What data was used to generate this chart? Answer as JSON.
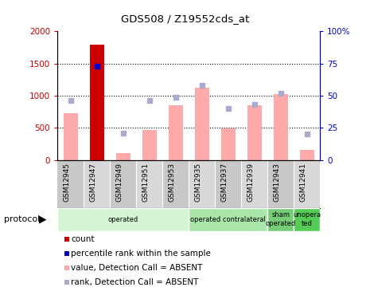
{
  "title": "GDS508 / Z19552cds_at",
  "samples": [
    "GSM12945",
    "GSM12947",
    "GSM12949",
    "GSM12951",
    "GSM12953",
    "GSM12935",
    "GSM12937",
    "GSM12939",
    "GSM12943",
    "GSM12941"
  ],
  "bar_values": [
    730,
    1800,
    110,
    470,
    850,
    1120,
    490,
    850,
    1030,
    155
  ],
  "rank_values": [
    46,
    73,
    21,
    46,
    49,
    58,
    40,
    43,
    52,
    20
  ],
  "count_sample_idx": 1,
  "percentile_sample_idx": 1,
  "ylim_left": [
    0,
    2000
  ],
  "ylim_right": [
    0,
    100
  ],
  "yticks_left": [
    0,
    500,
    1000,
    1500,
    2000
  ],
  "yticks_right": [
    0,
    25,
    50,
    75,
    100
  ],
  "ytick_labels_left": [
    "0",
    "500",
    "1000",
    "1500",
    "2000"
  ],
  "ytick_labels_right": [
    "0",
    "25",
    "50",
    "75",
    "100%"
  ],
  "grid_values": [
    500,
    1000,
    1500
  ],
  "protocols": [
    {
      "label": "operated",
      "start": 0,
      "end": 5,
      "color": "#d4f5d4"
    },
    {
      "label": "operated contralateral",
      "start": 5,
      "end": 8,
      "color": "#aae5aa"
    },
    {
      "label": "sham\noperated",
      "start": 8,
      "end": 9,
      "color": "#77cc77"
    },
    {
      "label": "unopera\nted",
      "start": 9,
      "end": 10,
      "color": "#55cc55"
    }
  ],
  "bar_color_absent": "#ffaaaa",
  "bar_color_count": "#cc0000",
  "rank_color_absent": "#aaaacc",
  "percentile_color": "#0000cc",
  "left_axis_color": "#cc0000",
  "right_axis_color": "#0000cc",
  "legend_items": [
    {
      "label": "count",
      "color": "#cc0000"
    },
    {
      "label": "percentile rank within the sample",
      "color": "#0000cc"
    },
    {
      "label": "value, Detection Call = ABSENT",
      "color": "#ffaaaa"
    },
    {
      "label": "rank, Detection Call = ABSENT",
      "color": "#aaaacc"
    }
  ],
  "fig_width": 4.65,
  "fig_height": 3.75,
  "dpi": 100
}
